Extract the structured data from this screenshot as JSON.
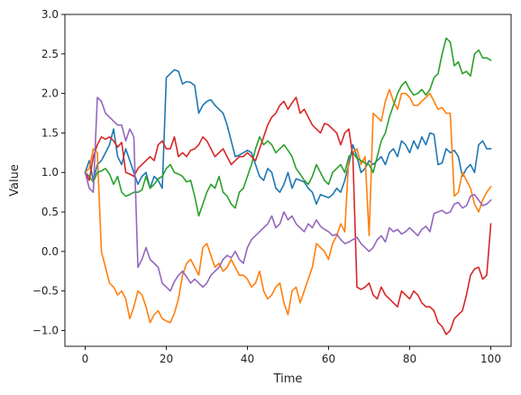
{
  "chart_data": {
    "type": "line",
    "title": "",
    "xlabel": "Time",
    "ylabel": "Value",
    "xlim": [
      -5,
      105
    ],
    "ylim": [
      -1.2,
      3.0
    ],
    "xticks": [
      0,
      20,
      40,
      60,
      80,
      100
    ],
    "xtick_labels": [
      "0",
      "20",
      "40",
      "60",
      "80",
      "100"
    ],
    "yticks": [
      -1.0,
      -0.5,
      0.0,
      0.5,
      1.0,
      1.5,
      2.0,
      2.5,
      3.0
    ],
    "ytick_labels": [
      "−1.0",
      "−0.5",
      "0.0",
      "0.5",
      "1.0",
      "1.5",
      "2.0",
      "2.5",
      "3.0"
    ],
    "grid": false,
    "legend": "none",
    "x": [
      0,
      1,
      2,
      3,
      4,
      5,
      6,
      7,
      8,
      9,
      10,
      11,
      12,
      13,
      14,
      15,
      16,
      17,
      18,
      19,
      20,
      21,
      22,
      23,
      24,
      25,
      26,
      27,
      28,
      29,
      30,
      31,
      32,
      33,
      34,
      35,
      36,
      37,
      38,
      39,
      40,
      41,
      42,
      43,
      44,
      45,
      46,
      47,
      48,
      49,
      50,
      51,
      52,
      53,
      54,
      55,
      56,
      57,
      58,
      59,
      60,
      61,
      62,
      63,
      64,
      65,
      66,
      67,
      68,
      69,
      70,
      71,
      72,
      73,
      74,
      75,
      76,
      77,
      78,
      79,
      80,
      81,
      82,
      83,
      84,
      85,
      86,
      87,
      88,
      89,
      90,
      91,
      92,
      93,
      94,
      95,
      96,
      97,
      98,
      99,
      100
    ],
    "series": [
      {
        "color": "#1f77b4",
        "values": [
          1.0,
          1.15,
          0.9,
          1.1,
          1.15,
          1.25,
          1.35,
          1.55,
          1.2,
          1.1,
          1.3,
          1.15,
          1.0,
          0.85,
          0.95,
          1.0,
          0.8,
          0.95,
          0.9,
          0.8,
          2.2,
          2.25,
          2.3,
          2.28,
          2.12,
          2.15,
          2.14,
          2.1,
          1.75,
          1.85,
          1.9,
          1.92,
          1.85,
          1.8,
          1.75,
          1.6,
          1.4,
          1.2,
          1.22,
          1.25,
          1.28,
          1.25,
          1.1,
          0.95,
          0.9,
          1.05,
          1.0,
          0.8,
          0.75,
          0.85,
          1.0,
          0.8,
          0.92,
          0.9,
          0.88,
          0.8,
          0.75,
          0.6,
          0.72,
          0.7,
          0.68,
          0.72,
          0.8,
          0.75,
          0.9,
          1.1,
          1.35,
          1.2,
          1.0,
          1.05,
          1.15,
          1.1,
          1.15,
          1.2,
          1.1,
          1.25,
          1.3,
          1.2,
          1.4,
          1.35,
          1.25,
          1.4,
          1.3,
          1.45,
          1.35,
          1.5,
          1.48,
          1.1,
          1.12,
          1.3,
          1.25,
          1.28,
          1.2,
          0.95,
          1.05,
          1.1,
          1.0,
          1.35,
          1.4,
          1.3,
          1.3
        ]
      },
      {
        "color": "#ff7f0e",
        "values": [
          1.0,
          1.05,
          1.3,
          1.25,
          0.0,
          -0.2,
          -0.4,
          -0.45,
          -0.55,
          -0.5,
          -0.6,
          -0.85,
          -0.7,
          -0.5,
          -0.55,
          -0.7,
          -0.9,
          -0.8,
          -0.75,
          -0.85,
          -0.88,
          -0.9,
          -0.78,
          -0.6,
          -0.3,
          -0.15,
          -0.1,
          -0.2,
          -0.3,
          0.05,
          0.1,
          -0.05,
          -0.2,
          -0.15,
          -0.25,
          -0.2,
          -0.1,
          -0.2,
          -0.3,
          -0.3,
          -0.35,
          -0.45,
          -0.4,
          -0.25,
          -0.5,
          -0.6,
          -0.55,
          -0.45,
          -0.4,
          -0.65,
          -0.8,
          -0.5,
          -0.45,
          -0.65,
          -0.5,
          -0.35,
          -0.2,
          0.1,
          0.05,
          0.0,
          -0.1,
          0.1,
          0.2,
          0.35,
          0.25,
          1.2,
          1.25,
          1.3,
          1.1,
          1.2,
          0.2,
          1.75,
          1.7,
          1.65,
          1.9,
          2.05,
          1.9,
          1.8,
          2.0,
          2.0,
          1.95,
          1.85,
          1.85,
          1.9,
          1.95,
          2.0,
          1.9,
          1.8,
          1.82,
          1.75,
          1.75,
          0.7,
          0.75,
          1.0,
          0.9,
          0.8,
          0.6,
          0.5,
          0.65,
          0.75,
          0.82
        ]
      },
      {
        "color": "#2ca02c",
        "values": [
          1.0,
          0.95,
          0.88,
          1.0,
          1.02,
          1.05,
          0.98,
          0.85,
          0.95,
          0.75,
          0.7,
          0.72,
          0.75,
          0.75,
          0.78,
          0.95,
          0.8,
          0.85,
          0.92,
          0.95,
          1.05,
          1.1,
          1.0,
          0.98,
          0.95,
          0.88,
          0.9,
          0.7,
          0.45,
          0.6,
          0.75,
          0.85,
          0.8,
          0.95,
          0.75,
          0.7,
          0.6,
          0.55,
          0.75,
          0.8,
          0.95,
          1.1,
          1.3,
          1.45,
          1.35,
          1.4,
          1.35,
          1.25,
          1.3,
          1.35,
          1.28,
          1.2,
          1.05,
          0.98,
          0.9,
          0.85,
          0.95,
          1.1,
          1.0,
          0.9,
          0.85,
          1.0,
          1.05,
          1.1,
          1.0,
          1.2,
          1.25,
          1.18,
          1.15,
          1.12,
          1.1,
          1.0,
          1.2,
          1.4,
          1.5,
          1.7,
          1.85,
          2.0,
          2.1,
          2.15,
          2.05,
          1.98,
          2.0,
          2.05,
          1.98,
          2.05,
          2.2,
          2.25,
          2.5,
          2.7,
          2.65,
          2.35,
          2.4,
          2.25,
          2.28,
          2.22,
          2.5,
          2.55,
          2.45,
          2.45,
          2.42
        ]
      },
      {
        "color": "#d62728",
        "values": [
          1.0,
          0.9,
          1.2,
          1.35,
          1.45,
          1.42,
          1.45,
          1.4,
          1.32,
          1.38,
          1.0,
          0.98,
          0.95,
          1.05,
          1.1,
          1.15,
          1.2,
          1.15,
          1.35,
          1.4,
          1.3,
          1.3,
          1.45,
          1.2,
          1.25,
          1.2,
          1.28,
          1.3,
          1.35,
          1.45,
          1.4,
          1.3,
          1.2,
          1.25,
          1.3,
          1.2,
          1.1,
          1.15,
          1.2,
          1.2,
          1.25,
          1.2,
          1.15,
          1.3,
          1.45,
          1.6,
          1.7,
          1.75,
          1.85,
          1.9,
          1.8,
          1.88,
          1.95,
          1.75,
          1.8,
          1.7,
          1.6,
          1.55,
          1.5,
          1.62,
          1.6,
          1.55,
          1.5,
          1.35,
          1.5,
          1.55,
          1.2,
          -0.45,
          -0.48,
          -0.45,
          -0.4,
          -0.55,
          -0.6,
          -0.45,
          -0.55,
          -0.6,
          -0.65,
          -0.7,
          -0.5,
          -0.55,
          -0.6,
          -0.5,
          -0.55,
          -0.65,
          -0.7,
          -0.7,
          -0.75,
          -0.9,
          -0.95,
          -1.05,
          -1.0,
          -0.85,
          -0.8,
          -0.75,
          -0.55,
          -0.3,
          -0.22,
          -0.2,
          -0.35,
          -0.3,
          0.35
        ]
      },
      {
        "color": "#9467bd",
        "values": [
          1.0,
          0.8,
          0.75,
          1.95,
          1.9,
          1.75,
          1.7,
          1.65,
          1.6,
          1.6,
          1.4,
          1.55,
          1.45,
          -0.2,
          -0.1,
          0.05,
          -0.1,
          -0.15,
          -0.2,
          -0.4,
          -0.45,
          -0.5,
          -0.38,
          -0.3,
          -0.25,
          -0.32,
          -0.4,
          -0.35,
          -0.4,
          -0.45,
          -0.4,
          -0.3,
          -0.25,
          -0.2,
          -0.1,
          -0.05,
          -0.08,
          0.0,
          -0.1,
          -0.15,
          0.05,
          0.15,
          0.2,
          0.25,
          0.3,
          0.35,
          0.45,
          0.3,
          0.35,
          0.5,
          0.4,
          0.45,
          0.35,
          0.3,
          0.25,
          0.35,
          0.3,
          0.4,
          0.32,
          0.28,
          0.25,
          0.2,
          0.22,
          0.15,
          0.1,
          0.12,
          0.15,
          0.18,
          0.1,
          0.05,
          0.0,
          0.05,
          0.15,
          0.2,
          0.12,
          0.3,
          0.25,
          0.28,
          0.22,
          0.25,
          0.3,
          0.25,
          0.2,
          0.28,
          0.32,
          0.25,
          0.48,
          0.5,
          0.52,
          0.48,
          0.5,
          0.6,
          0.62,
          0.55,
          0.58,
          0.7,
          0.72,
          0.65,
          0.58,
          0.6,
          0.65
        ]
      }
    ]
  }
}
